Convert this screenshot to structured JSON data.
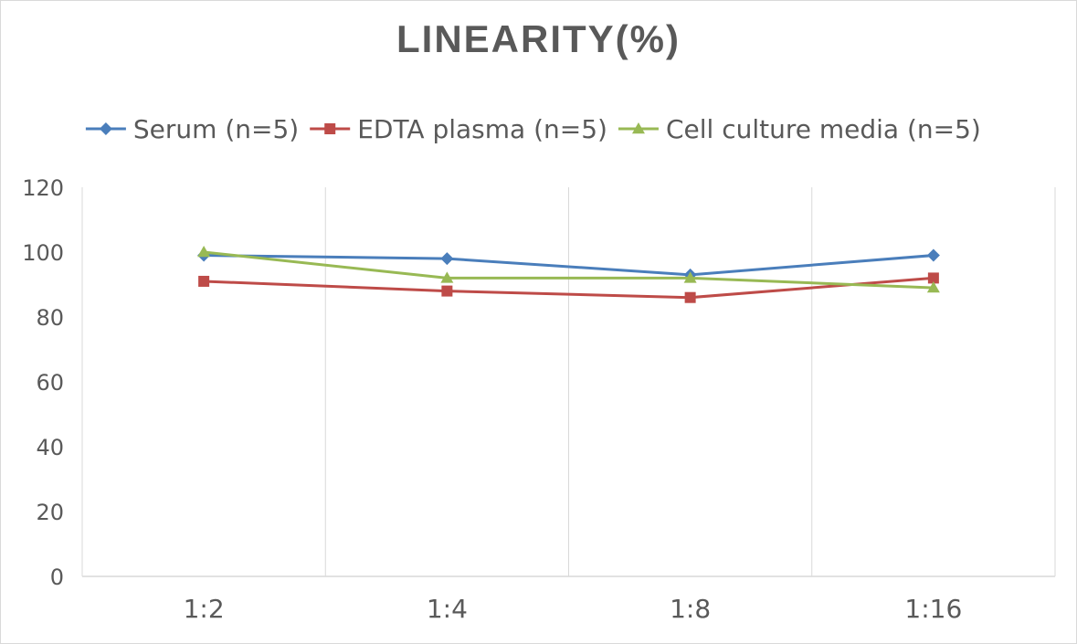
{
  "chart_data": {
    "type": "line",
    "title": "LINEARITY(%)",
    "categories": [
      "1:2",
      "1:4",
      "1:8",
      "1:16"
    ],
    "series": [
      {
        "name": "Serum (n=5)",
        "values": [
          99,
          98,
          93,
          99
        ],
        "color": "#4a7ebb",
        "marker": "diamond"
      },
      {
        "name": "EDTA plasma (n=5)",
        "values": [
          91,
          88,
          86,
          92
        ],
        "color": "#be4b48",
        "marker": "square"
      },
      {
        "name": "Cell culture media (n=5)",
        "values": [
          100,
          92,
          92,
          89
        ],
        "color": "#98b954",
        "marker": "triangle"
      }
    ],
    "ylim": [
      0,
      120
    ],
    "yticks": [
      0,
      20,
      40,
      60,
      80,
      100,
      120
    ],
    "grid": "vertical",
    "legend": "top"
  }
}
